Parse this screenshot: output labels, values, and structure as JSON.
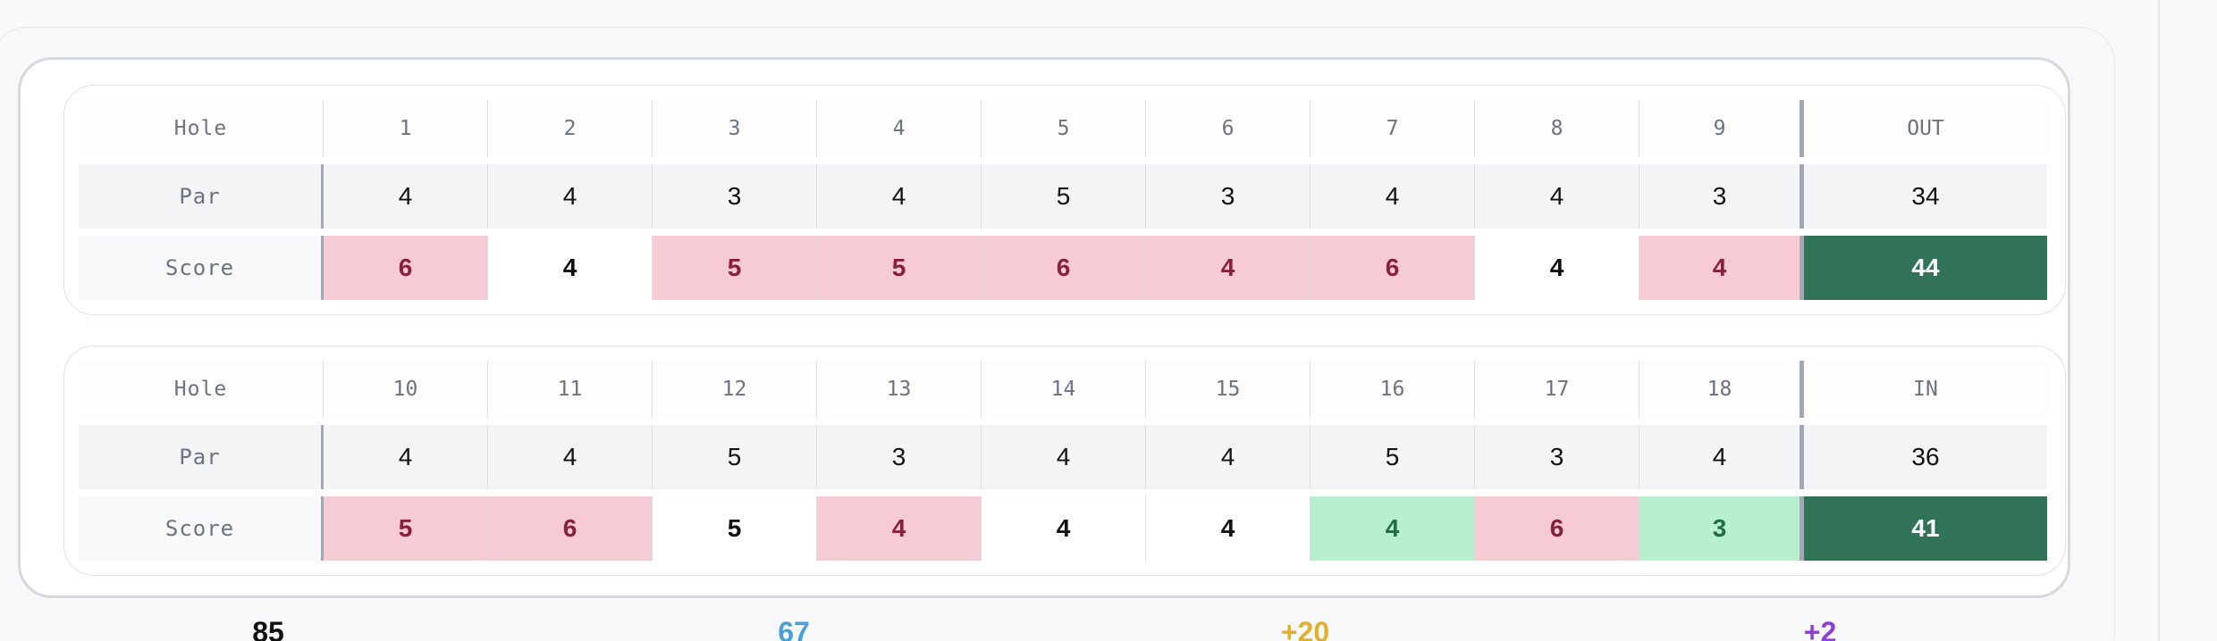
{
  "front_nine": {
    "hole_label": "Hole",
    "par_label": "Par",
    "score_label": "Score",
    "holes": [
      "1",
      "2",
      "3",
      "4",
      "5",
      "6",
      "7",
      "8",
      "9"
    ],
    "pars": [
      "4",
      "4",
      "3",
      "4",
      "5",
      "3",
      "4",
      "4",
      "3"
    ],
    "scores": [
      "6",
      "4",
      "5",
      "5",
      "6",
      "4",
      "6",
      "4",
      "4"
    ],
    "score_status": [
      "bogey",
      "par",
      "bogey",
      "bogey",
      "bogey",
      "bogey",
      "bogey",
      "par",
      "bogey"
    ],
    "total_label": "OUT",
    "par_total": "34",
    "score_total": "44"
  },
  "back_nine": {
    "hole_label": "Hole",
    "par_label": "Par",
    "score_label": "Score",
    "holes": [
      "10",
      "11",
      "12",
      "13",
      "14",
      "15",
      "16",
      "17",
      "18"
    ],
    "pars": [
      "4",
      "4",
      "5",
      "3",
      "4",
      "4",
      "5",
      "3",
      "4"
    ],
    "scores": [
      "5",
      "6",
      "5",
      "4",
      "4",
      "4",
      "4",
      "6",
      "3"
    ],
    "score_status": [
      "bogey",
      "bogey",
      "par",
      "bogey",
      "par",
      "par",
      "birdie",
      "bogey",
      "birdie"
    ],
    "total_label": "IN",
    "par_total": "36",
    "score_total": "41"
  },
  "stats": [
    {
      "value": "85",
      "color": "#111111"
    },
    {
      "value": "67",
      "color": "#4a9fd8"
    },
    {
      "value": "+20",
      "color": "#e0b02e"
    },
    {
      "value": "+2",
      "color": "#8e3fd6"
    }
  ],
  "colors": {
    "bogey_bg": "#f6cbd3",
    "birdie_bg": "#b8f0cf",
    "total_bg": "#317357"
  }
}
